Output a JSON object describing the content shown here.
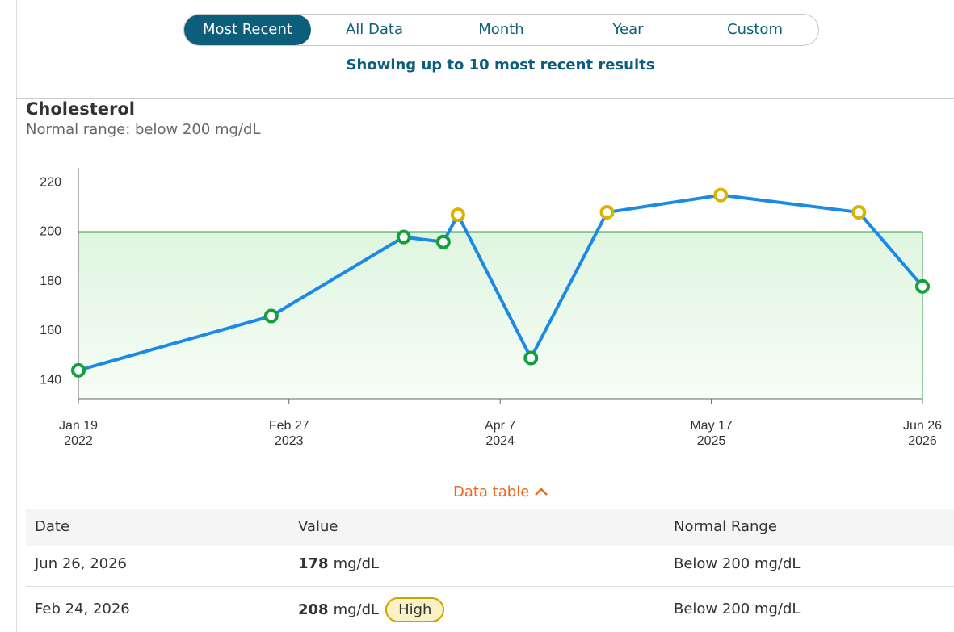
{
  "tabs": {
    "items": [
      "Most Recent",
      "All Data",
      "Month",
      "Year",
      "Custom"
    ],
    "active": 0
  },
  "notice": "Showing up to 10 most recent results",
  "chart_data": {
    "type": "line",
    "title": "Cholesterol",
    "subtitle": "Normal range: below 200 mg/dL",
    "x": [
      "2022-01-19",
      "2023-01-24",
      "2023-10-05",
      "2023-12-20",
      "2024-01-17",
      "2024-06-05",
      "2024-10-29",
      "2025-06-04",
      "2026-02-24",
      "2026-06-26"
    ],
    "values": [
      144,
      166,
      198,
      196,
      207,
      149,
      208,
      215,
      208,
      178
    ],
    "color": "#1a8ae6",
    "normal_max": 200,
    "normal_color": "#2e9e45",
    "marker_colors": {
      "normal": "#12a03c",
      "high": "#d9b300"
    },
    "xlim": [
      "2022-01-19",
      "2026-06-26"
    ],
    "xticks": [
      {
        "value": "2022-01-19",
        "label": [
          "Jan 19",
          "2022"
        ]
      },
      {
        "value": "2023-02-27",
        "label": [
          "Feb 27",
          "2023"
        ]
      },
      {
        "value": "2024-04-07",
        "label": [
          "Apr 7",
          "2024"
        ]
      },
      {
        "value": "2025-05-17",
        "label": [
          "May 17",
          "2025"
        ]
      },
      {
        "value": "2026-06-26",
        "label": [
          "Jun 26",
          "2026"
        ]
      }
    ],
    "ylim": [
      132.5,
      226
    ],
    "yticks": [
      140,
      160,
      180,
      200,
      220
    ]
  },
  "data_table_toggle": "Data table",
  "table": {
    "headers": [
      "Date",
      "Value",
      "Normal Range"
    ],
    "rows": [
      {
        "date": "Jun 26, 2026",
        "value": 178,
        "unit": "mg/dL",
        "range": "Below 200 mg/dL"
      },
      {
        "date": "Feb 24, 2026",
        "value": 208,
        "unit": "mg/dL",
        "flag": "High",
        "range": "Below 200 mg/dL"
      }
    ]
  }
}
